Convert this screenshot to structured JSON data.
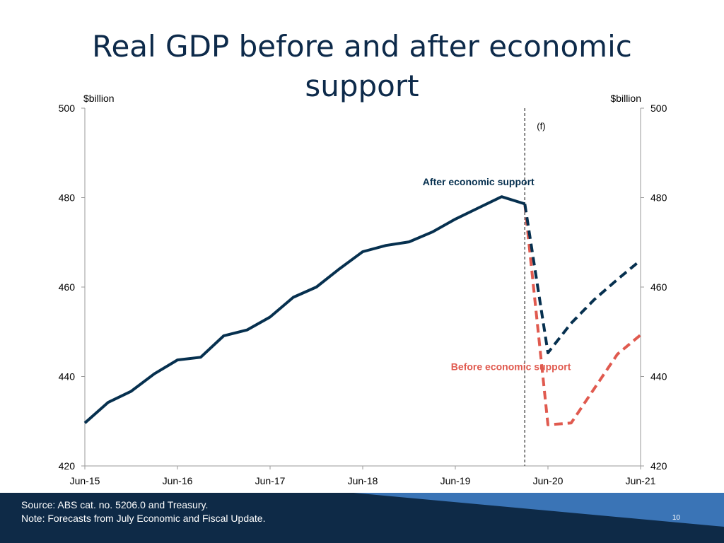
{
  "slide": {
    "title_line1": "Real GDP before and after economic",
    "title_line2": "support",
    "page_number": "10"
  },
  "footer": {
    "source": "Source: ABS cat. no. 5206.0 and Treasury.",
    "note": "Note: Forecasts from July Economic and Fiscal Update."
  },
  "colors": {
    "title": "#0d2a4a",
    "after_series": "#06304f",
    "before_series": "#e05a4f",
    "footer_bg": "#0e2a47",
    "footer_accent": "#3a74b6"
  },
  "chart_data": {
    "type": "line",
    "y_unit_left": "$billion",
    "y_unit_right": "$billion",
    "ylim": [
      420,
      500
    ],
    "yticks": [
      420,
      440,
      460,
      480,
      500
    ],
    "ytick_labels": [
      "420",
      "440",
      "460",
      "480",
      "500"
    ],
    "xticks": [
      0,
      4,
      8,
      12,
      16,
      20,
      24
    ],
    "xtick_labels": [
      "Jun-15",
      "Jun-16",
      "Jun-17",
      "Jun-18",
      "Jun-19",
      "Jun-20",
      "Jun-21"
    ],
    "forecast_marker": {
      "x": 19,
      "label": "(f)"
    },
    "grid": false,
    "series": [
      {
        "name": "After economic support",
        "style": "solid",
        "x": [
          0,
          1,
          2,
          3,
          4,
          5,
          6,
          7,
          8,
          9,
          10,
          11,
          12,
          13,
          14,
          15,
          16,
          17,
          18,
          19
        ],
        "values": [
          429.6,
          434.2,
          436.7,
          440.6,
          443.7,
          444.3,
          449.1,
          450.4,
          453.3,
          457.7,
          460.0,
          464.1,
          467.9,
          469.3,
          470.1,
          472.3,
          475.2,
          477.7,
          480.2,
          478.6
        ]
      },
      {
        "name": "After economic support",
        "style": "dashed",
        "x": [
          19,
          20,
          21,
          22,
          23,
          24
        ],
        "values": [
          478.6,
          445.3,
          451.9,
          457.2,
          461.7,
          466.0
        ]
      },
      {
        "name": "Before economic support",
        "style": "dashed",
        "x": [
          19,
          20,
          21,
          22,
          23,
          24
        ],
        "values": [
          478.6,
          429.2,
          429.6,
          437.3,
          445.0,
          449.3
        ]
      }
    ],
    "annotations": [
      {
        "text": "After economic support",
        "x": 17.0,
        "y": 482.8,
        "series": "after"
      },
      {
        "text": "Before economic support",
        "x": 18.4,
        "y": 441.4,
        "series": "before"
      }
    ]
  }
}
